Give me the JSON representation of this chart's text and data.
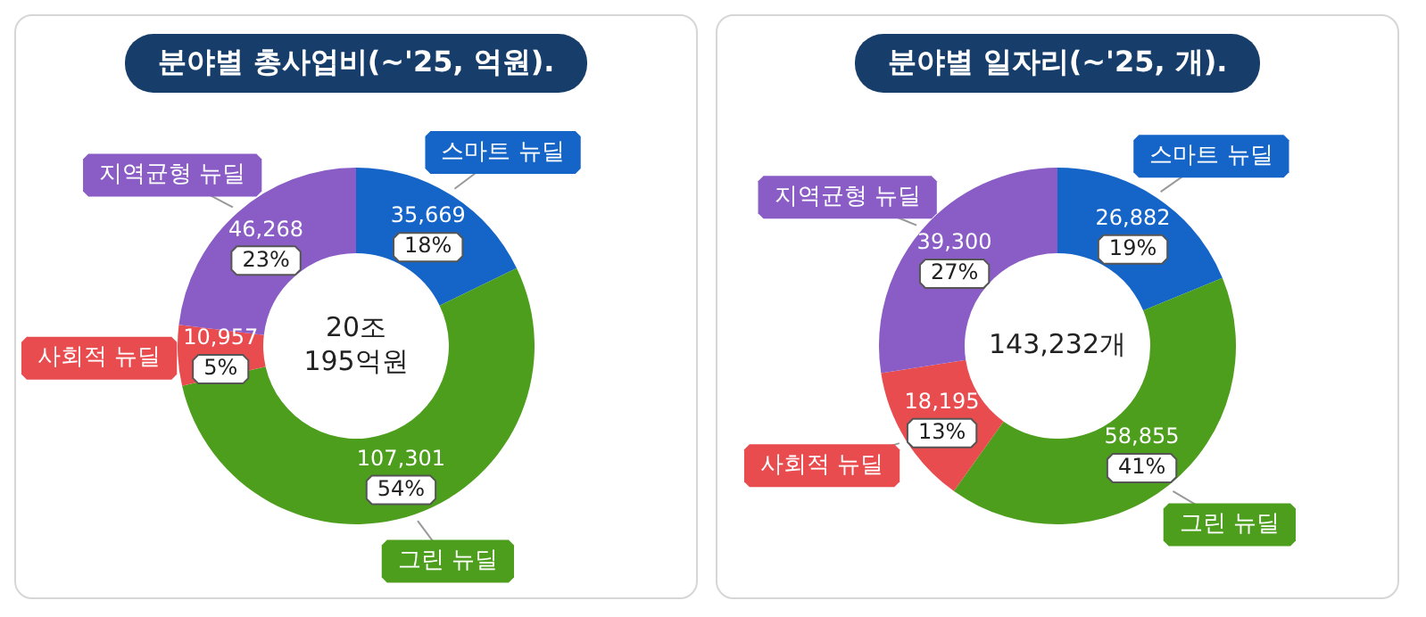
{
  "chart_data": [
    {
      "type": "donut",
      "title": "분야별 총사업비(~'25, 억원).",
      "categories": [
        "스마트 뉴딜",
        "그린 뉴딜",
        "사회적 뉴딜",
        "지역균형 뉴딜"
      ],
      "values": [
        35669,
        107301,
        10957,
        46268
      ],
      "colors": [
        "#1565c8",
        "#4c9e1c",
        "#e84c4f",
        "#8a5cc6"
      ],
      "value_labels": [
        "35,669\n18%",
        "107,301\n54%",
        "10,957\n5%",
        "46,268\n23%"
      ],
      "annotations": [
        "20조\n195억원"
      ]
    },
    {
      "type": "donut",
      "title": "분야별 일자리(~'25, 개).",
      "categories": [
        "스마트 뉴딜",
        "그린 뉴딜",
        "사회적 뉴딜",
        "지역균형 뉴딜"
      ],
      "values": [
        26882,
        58855,
        18195,
        39300
      ],
      "colors": [
        "#1565c8",
        "#4c9e1c",
        "#e84c4f",
        "#8a5cc6"
      ],
      "value_labels": [
        "26,882\n19%",
        "58,855\n41%",
        "18,195\n13%",
        "39,300\n27%"
      ],
      "annotations": [
        "143,232개"
      ]
    }
  ]
}
